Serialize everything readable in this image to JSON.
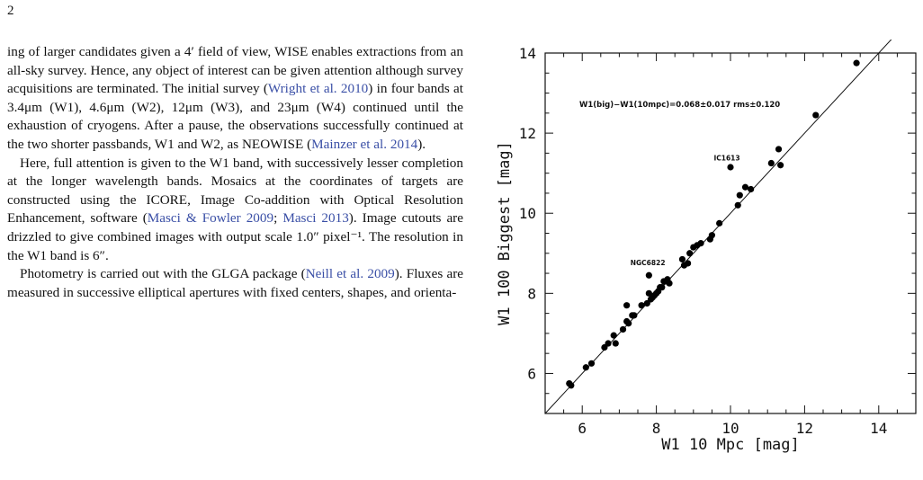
{
  "page_number": "2",
  "paragraphs": [
    {
      "indent": false,
      "segments": [
        {
          "t": "ing of larger candidates given a 4′ field of view, WISE enables extractions from an all-sky survey. Hence, any object of interest can be given attention although survey acquisitions are terminated. The initial survey ("
        },
        {
          "t": "Wright et al. 2010",
          "cite": true
        },
        {
          "t": ") in four bands at 3.4μm (W1), 4.6μm (W2), 12μm (W3), and 23μm (W4) continued until the exhaustion of cryogens. After a pause, the observations successfully continued at the two shorter passbands, W1 and W2, as NEOWISE ("
        },
        {
          "t": "Mainzer et al. 2014",
          "cite": true
        },
        {
          "t": ")."
        }
      ]
    },
    {
      "indent": true,
      "segments": [
        {
          "t": "Here, full attention is given to the W1 band, with successively lesser completion at the longer wavelength bands. Mosaics at the coordinates of targets are constructed using the ICORE, Image Co-addition with Optical Resolution Enhancement, software ("
        },
        {
          "t": "Masci & Fowler 2009",
          "cite": true
        },
        {
          "t": "; "
        },
        {
          "t": "Masci 2013",
          "cite": true
        },
        {
          "t": "). Image cutouts are drizzled to give combined images with output scale 1.0″ pixel⁻¹. The resolution in the W1 band is 6″."
        }
      ]
    },
    {
      "indent": true,
      "segments": [
        {
          "t": "Photometry is carried out with the GLGA package ("
        },
        {
          "t": "Neill et al. 2009",
          "cite": true
        },
        {
          "t": "). Fluxes are measured in successive elliptical apertures with fixed centers, shapes, and orienta-"
        }
      ]
    }
  ],
  "chart_data": {
    "type": "scatter",
    "xlabel": "W1 10 Mpc [mag]",
    "ylabel": "W1 100 Biggest [mag]",
    "xlim": [
      5,
      15
    ],
    "ylim": [
      5,
      14
    ],
    "xticks": [
      6,
      8,
      10,
      12,
      14
    ],
    "yticks": [
      6,
      8,
      10,
      12,
      14
    ],
    "xtick_labels": [
      "6",
      "8",
      "10",
      "12",
      "14"
    ],
    "ytick_labels": [
      "6",
      "8",
      "10",
      "12",
      "14"
    ],
    "grid": false,
    "annotation": "W1(big)−W1(10mpc)=0.068±0.017   rms±0.120",
    "line": {
      "x": [
        5,
        15
      ],
      "y": [
        5,
        15
      ]
    },
    "labels": [
      {
        "text": "IC1613",
        "x": 9.55,
        "y": 11.32
      },
      {
        "text": "NGC6822",
        "x": 7.3,
        "y": 8.7
      }
    ],
    "x": [
      5.65,
      5.7,
      6.1,
      6.25,
      6.6,
      6.7,
      6.85,
      6.9,
      7.1,
      7.2,
      7.25,
      7.35,
      7.4,
      7.6,
      7.75,
      7.8,
      7.85,
      7.9,
      7.95,
      8.0,
      8.05,
      8.1,
      8.15,
      8.2,
      8.25,
      8.3,
      8.35,
      7.8,
      7.2,
      8.7,
      8.75,
      8.85,
      8.9,
      9.0,
      9.1,
      9.2,
      9.45,
      9.5,
      9.7,
      10.0,
      10.2,
      10.25,
      10.4,
      10.55,
      11.1,
      11.3,
      11.35,
      12.3,
      13.4
    ],
    "y": [
      5.75,
      5.7,
      6.15,
      6.25,
      6.65,
      6.75,
      6.95,
      6.75,
      7.1,
      7.3,
      7.25,
      7.45,
      7.45,
      7.7,
      7.75,
      8.0,
      7.85,
      7.9,
      7.95,
      8.0,
      8.05,
      8.15,
      8.15,
      8.3,
      8.3,
      8.35,
      8.25,
      8.45,
      7.7,
      8.85,
      8.7,
      8.75,
      9.0,
      9.15,
      9.2,
      9.25,
      9.35,
      9.45,
      9.75,
      11.15,
      10.2,
      10.45,
      10.65,
      10.6,
      11.25,
      11.6,
      11.2,
      12.45,
      13.75
    ]
  }
}
